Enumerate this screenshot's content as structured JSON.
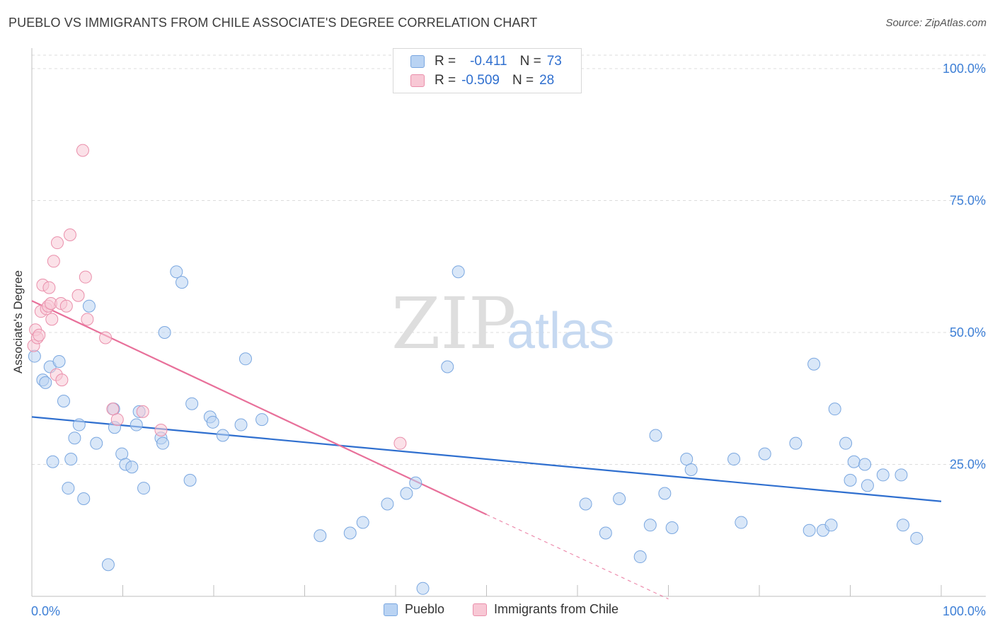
{
  "title": "PUEBLO VS IMMIGRANTS FROM CHILE ASSOCIATE'S DEGREE CORRELATION CHART",
  "source": "Source: ZipAtlas.com",
  "watermark": {
    "zip": "ZIP",
    "atlas": "atlas"
  },
  "stats": {
    "pueblo": {
      "r_label": "R =",
      "r_value": "-0.411",
      "n_label": "N =",
      "n_value": "73"
    },
    "chile": {
      "r_label": "R =",
      "r_value": "-0.509",
      "n_label": "N =",
      "n_value": "28"
    }
  },
  "legend": {
    "pueblo": "Pueblo",
    "chile": "Immigrants from Chile"
  },
  "colors": {
    "pueblo_fill": "#b9d3f3",
    "pueblo_stroke": "#7aa7e0",
    "pueblo_line": "#2f6fcf",
    "chile_fill": "#f8c8d5",
    "chile_stroke": "#ea8fab",
    "chile_line": "#e8709a",
    "axis_text": "#3d7fd6",
    "grid": "#dcdcdc"
  },
  "chart_data": {
    "type": "scatter",
    "title": "PUEBLO VS IMMIGRANTS FROM CHILE ASSOCIATE'S DEGREE CORRELATION CHART",
    "xlabel": "",
    "ylabel": "Associate's Degree",
    "xlim": [
      0,
      100
    ],
    "ylim": [
      0,
      100
    ],
    "x_tick_labels": [
      "0.0%",
      "100.0%"
    ],
    "y_ticks": [
      25,
      50,
      75,
      100
    ],
    "y_tick_labels": [
      "25.0%",
      "50.0%",
      "75.0%",
      "100.0%"
    ],
    "grid": true,
    "legend_position": "bottom",
    "series": [
      {
        "name": "Pueblo",
        "r": -0.411,
        "n": 73,
        "trend": {
          "x": [
            0,
            100
          ],
          "y": [
            34.0,
            18.0
          ]
        },
        "points": [
          [
            0.3,
            45.5
          ],
          [
            1.2,
            41.0
          ],
          [
            1.5,
            40.5
          ],
          [
            2.0,
            43.5
          ],
          [
            2.3,
            25.5
          ],
          [
            3.0,
            44.5
          ],
          [
            3.5,
            37.0
          ],
          [
            4.0,
            20.5
          ],
          [
            4.3,
            26.0
          ],
          [
            4.7,
            30.0
          ],
          [
            5.2,
            32.5
          ],
          [
            5.7,
            18.5
          ],
          [
            6.3,
            55.0
          ],
          [
            7.1,
            29.0
          ],
          [
            8.4,
            6.0
          ],
          [
            9.0,
            35.5
          ],
          [
            9.1,
            32.0
          ],
          [
            9.9,
            27.0
          ],
          [
            10.3,
            25.0
          ],
          [
            11.0,
            24.5
          ],
          [
            11.5,
            32.5
          ],
          [
            11.8,
            35.0
          ],
          [
            12.3,
            20.5
          ],
          [
            14.2,
            30.0
          ],
          [
            14.4,
            29.0
          ],
          [
            14.6,
            50.0
          ],
          [
            15.9,
            61.5
          ],
          [
            16.5,
            59.5
          ],
          [
            17.4,
            22.0
          ],
          [
            17.6,
            36.5
          ],
          [
            19.6,
            34.0
          ],
          [
            19.9,
            33.0
          ],
          [
            21.0,
            30.5
          ],
          [
            23.0,
            32.5
          ],
          [
            23.5,
            45.0
          ],
          [
            25.3,
            33.5
          ],
          [
            31.7,
            11.5
          ],
          [
            35.0,
            12.0
          ],
          [
            36.4,
            14.0
          ],
          [
            39.1,
            17.5
          ],
          [
            41.2,
            19.5
          ],
          [
            42.2,
            21.5
          ],
          [
            43.0,
            1.5
          ],
          [
            45.7,
            43.5
          ],
          [
            46.9,
            61.5
          ],
          [
            60.9,
            17.5
          ],
          [
            63.1,
            12.0
          ],
          [
            64.6,
            18.5
          ],
          [
            66.9,
            7.5
          ],
          [
            68.0,
            13.5
          ],
          [
            68.6,
            30.5
          ],
          [
            69.6,
            19.5
          ],
          [
            70.4,
            13.0
          ],
          [
            72.0,
            26.0
          ],
          [
            72.5,
            24.0
          ],
          [
            77.2,
            26.0
          ],
          [
            78.0,
            14.0
          ],
          [
            80.6,
            27.0
          ],
          [
            84.0,
            29.0
          ],
          [
            86.0,
            44.0
          ],
          [
            85.5,
            12.5
          ],
          [
            87.0,
            12.5
          ],
          [
            87.9,
            13.5
          ],
          [
            88.3,
            35.5
          ],
          [
            89.5,
            29.0
          ],
          [
            90.0,
            22.0
          ],
          [
            90.4,
            25.5
          ],
          [
            91.6,
            25.0
          ],
          [
            91.9,
            21.0
          ],
          [
            93.6,
            23.0
          ],
          [
            95.6,
            23.0
          ],
          [
            95.8,
            13.5
          ],
          [
            97.3,
            11.0
          ]
        ]
      },
      {
        "name": "Immigrants from Chile",
        "r": -0.509,
        "n": 28,
        "trend": {
          "x": [
            0,
            50
          ],
          "y": [
            56.0,
            15.5
          ],
          "dashed_to": {
            "x": 70,
            "y": -0.5
          }
        },
        "points": [
          [
            0.2,
            47.5
          ],
          [
            0.4,
            50.5
          ],
          [
            0.6,
            49.0
          ],
          [
            0.8,
            49.5
          ],
          [
            1.0,
            54.0
          ],
          [
            1.2,
            59.0
          ],
          [
            1.6,
            54.5
          ],
          [
            1.8,
            55.0
          ],
          [
            1.9,
            58.5
          ],
          [
            2.1,
            55.5
          ],
          [
            2.2,
            52.5
          ],
          [
            2.4,
            63.5
          ],
          [
            2.7,
            42.0
          ],
          [
            2.8,
            67.0
          ],
          [
            3.2,
            55.5
          ],
          [
            3.3,
            41.0
          ],
          [
            3.8,
            55.0
          ],
          [
            4.2,
            68.5
          ],
          [
            5.1,
            57.0
          ],
          [
            5.6,
            84.5
          ],
          [
            5.9,
            60.5
          ],
          [
            6.1,
            52.5
          ],
          [
            8.1,
            49.0
          ],
          [
            8.9,
            35.5
          ],
          [
            9.4,
            33.5
          ],
          [
            12.2,
            35.0
          ],
          [
            14.2,
            31.5
          ],
          [
            40.5,
            29.0
          ]
        ]
      }
    ]
  }
}
